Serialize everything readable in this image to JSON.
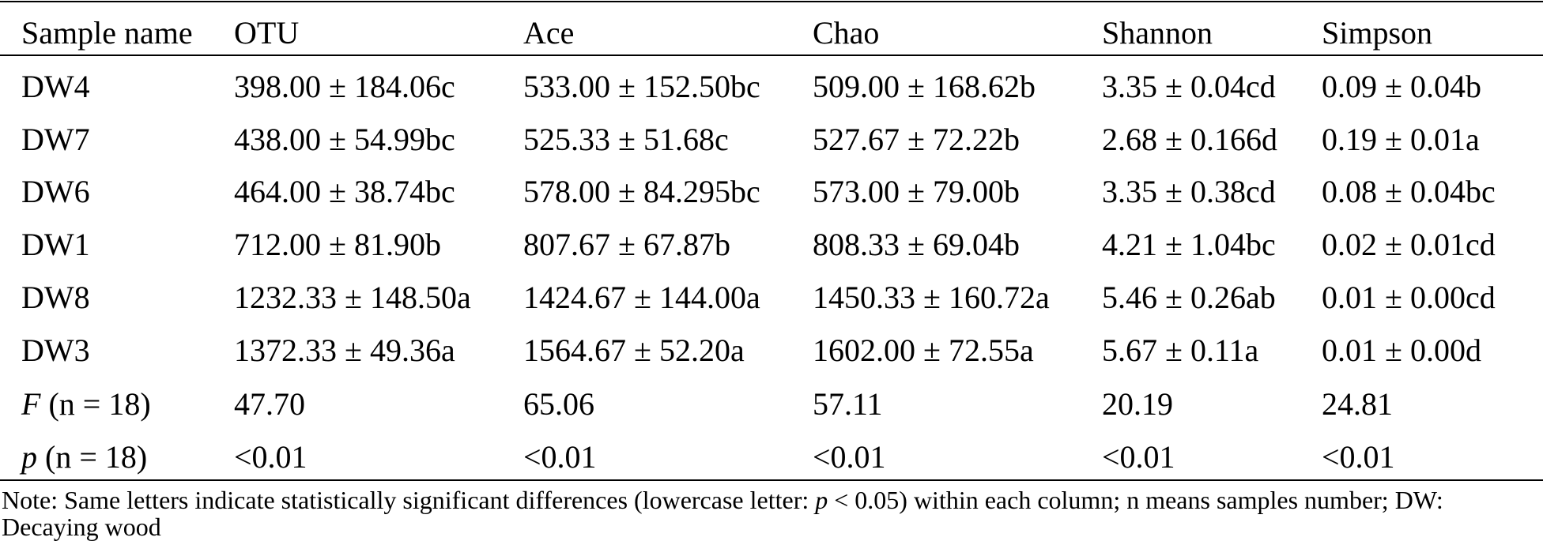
{
  "table": {
    "header": [
      "Sample name",
      "OTU",
      "Ace",
      "Chao",
      "Shannon",
      "Simpson"
    ],
    "rows": [
      [
        "DW4",
        "398.00 ± 184.06c",
        "533.00 ± 152.50bc",
        "509.00 ± 168.62b",
        "3.35 ± 0.04cd",
        "0.09 ± 0.04b"
      ],
      [
        "DW7",
        "438.00 ± 54.99bc",
        "525.33 ± 51.68c",
        "527.67 ± 72.22b",
        "2.68 ± 0.166d",
        "0.19 ± 0.01a"
      ],
      [
        "DW6",
        "464.00 ± 38.74bc",
        "578.00 ± 84.295bc",
        "573.00 ± 79.00b",
        "3.35 ± 0.38cd",
        "0.08 ± 0.04bc"
      ],
      [
        "DW1",
        "712.00 ± 81.90b",
        "807.67 ± 67.87b",
        "808.33 ± 69.04b",
        "4.21 ± 1.04bc",
        "0.02 ± 0.01cd"
      ],
      [
        "DW8",
        "1232.33 ± 148.50a",
        "1424.67 ± 144.00a",
        "1450.33 ± 160.72a",
        "5.46 ± 0.26ab",
        "0.01 ± 0.00cd"
      ],
      [
        "DW3",
        "1372.33 ± 49.36a",
        "1564.67 ± 52.20a",
        "1602.00 ± 72.55a",
        "5.67 ± 0.11a",
        "0.01 ± 0.00d"
      ]
    ],
    "stats_rows": [
      {
        "symbol": "F",
        "label": "(n = 18)",
        "values": [
          "47.70",
          "65.06",
          "57.11",
          "20.19",
          "24.81"
        ]
      },
      {
        "symbol": "p",
        "label": "(n = 18)",
        "values": [
          "<0.01",
          "<0.01",
          "<0.01",
          "<0.01",
          "<0.01"
        ]
      }
    ],
    "note": {
      "before": "Note: Same letters indicate statistically significant differences (lowercase letter: ",
      "italic": "p",
      "after": " < 0.05) within each column; n means samples number; DW: Decaying wood"
    }
  }
}
